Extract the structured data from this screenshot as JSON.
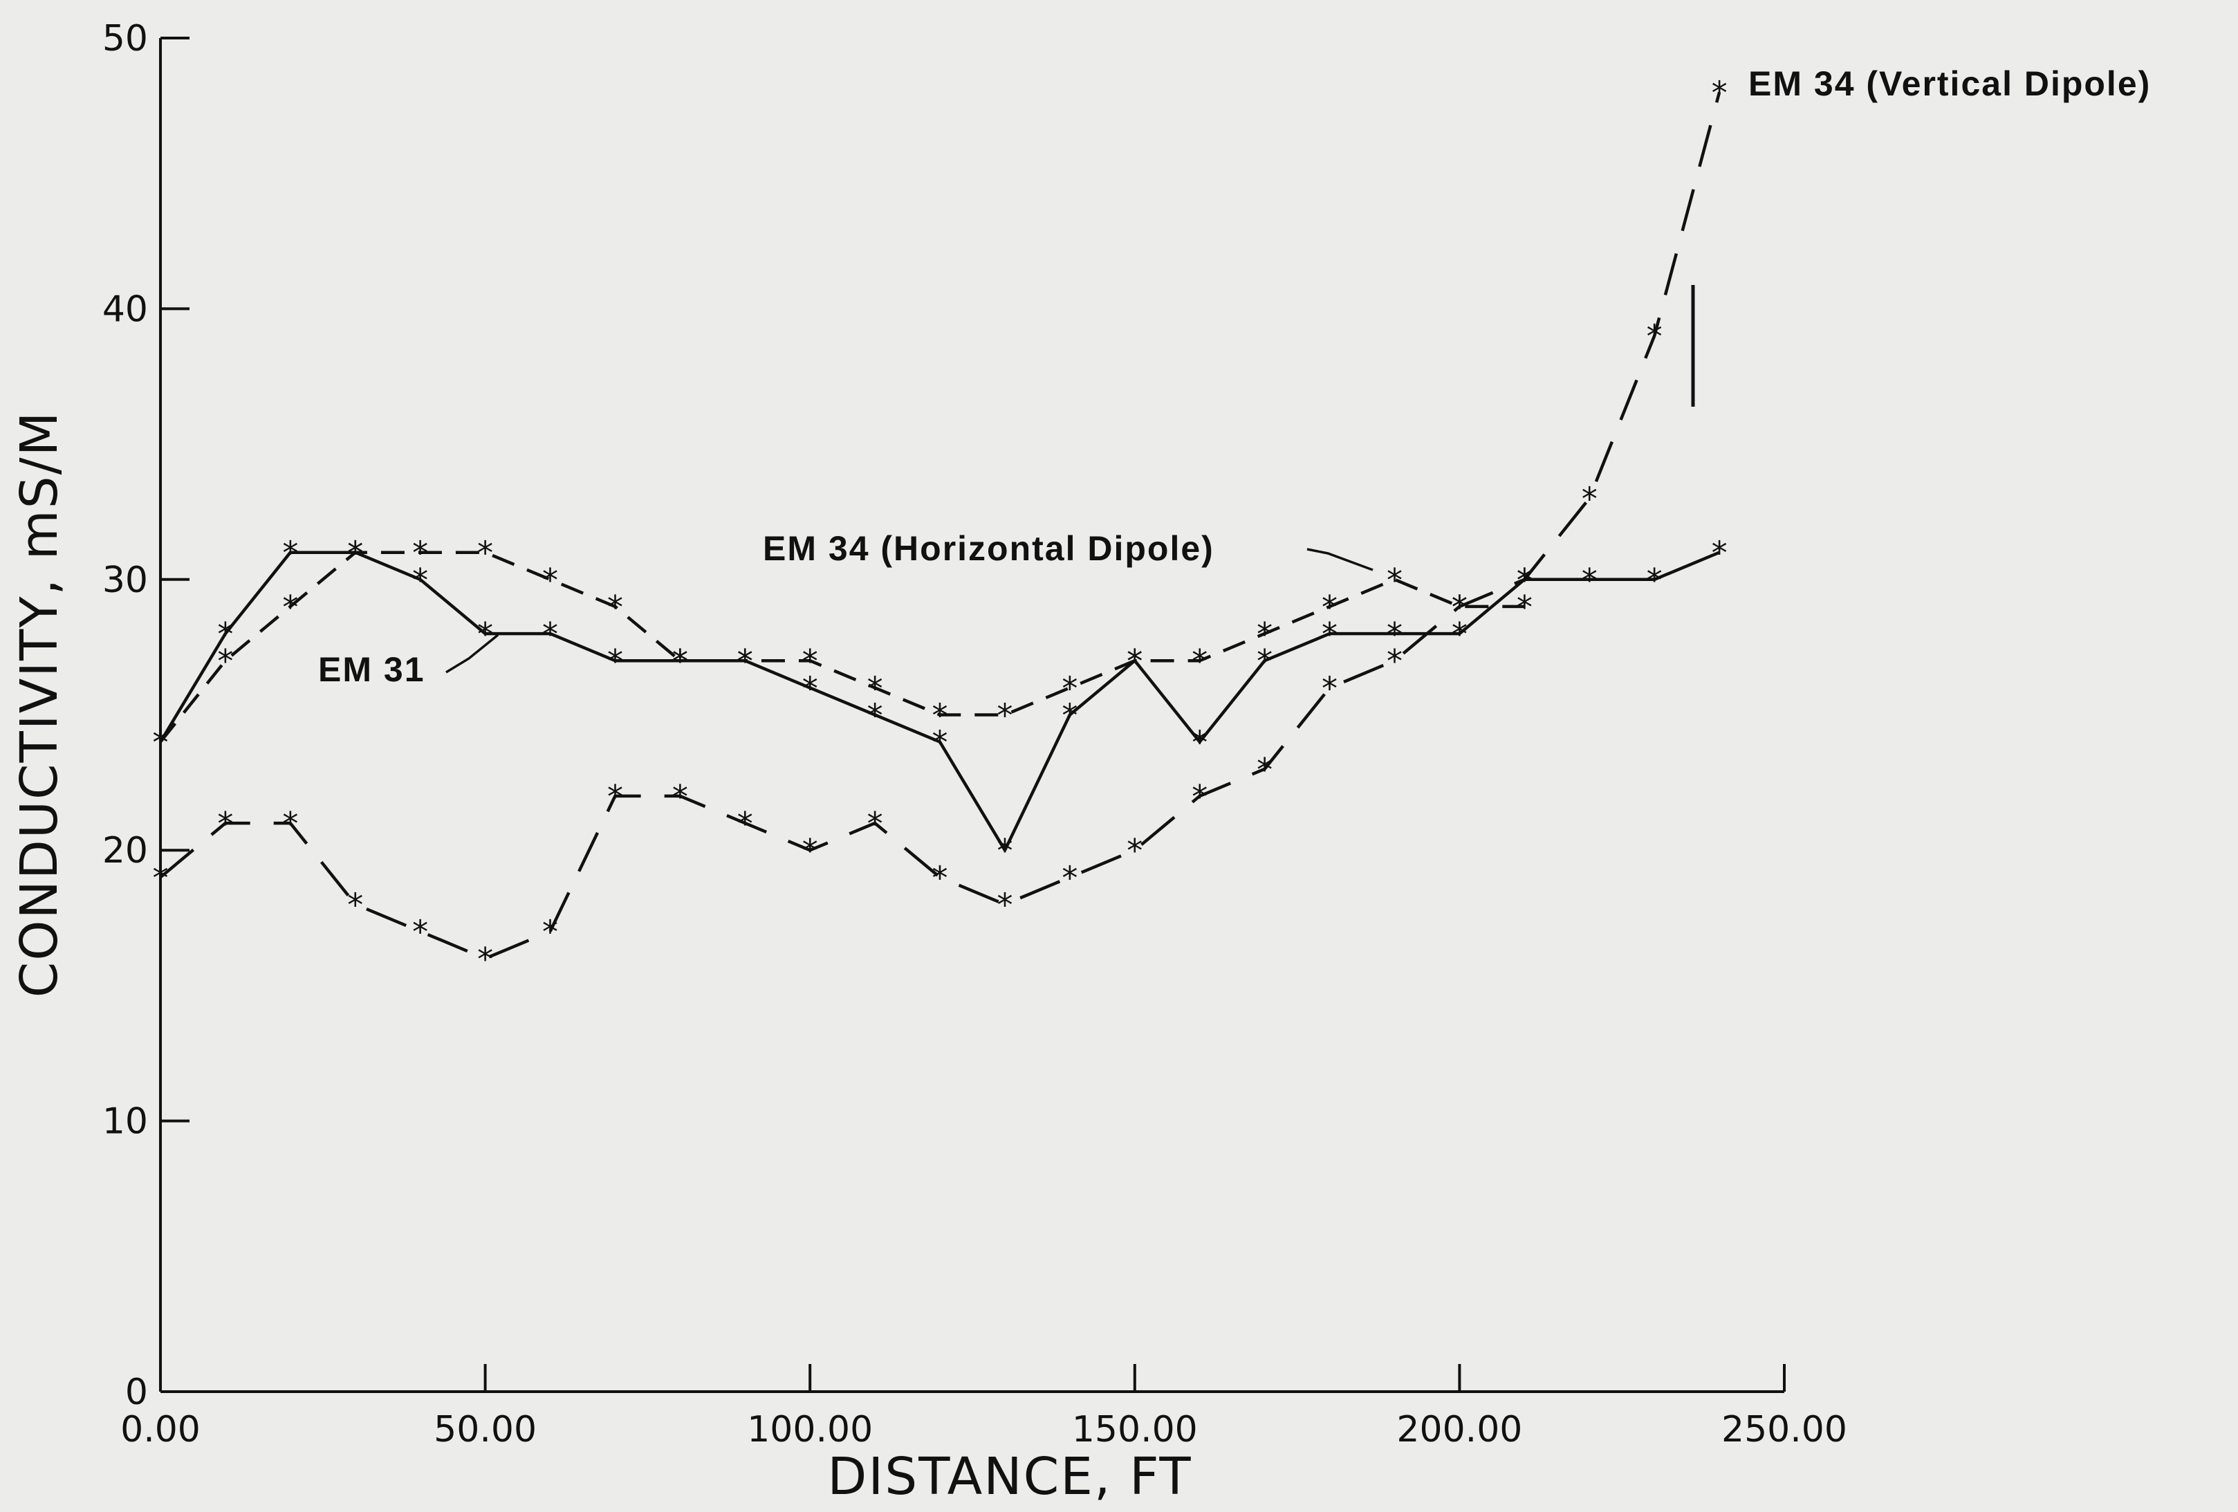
{
  "chart_data": {
    "type": "line",
    "title": "",
    "xlabel": "DISTANCE, FT",
    "ylabel": "CONDUCTIVITY, mS/M",
    "xlim": [
      0,
      250
    ],
    "ylim": [
      0,
      50
    ],
    "x_ticks": [
      "0.00",
      "50.00",
      "100.00",
      "150.00",
      "200.00",
      "250.00"
    ],
    "y_ticks": [
      "0",
      "10",
      "20",
      "30",
      "40",
      "50"
    ],
    "grid": false,
    "series": [
      {
        "name": "EM 31",
        "line_style": "solid",
        "x": [
          0,
          10,
          20,
          30,
          40,
          50,
          60,
          70,
          80,
          90,
          100,
          110,
          120,
          130,
          140,
          150,
          160,
          170,
          180,
          190,
          200,
          210,
          220,
          230,
          240
        ],
        "y": [
          24,
          28,
          31,
          31,
          30,
          28,
          28,
          27,
          27,
          27,
          26,
          25,
          24,
          20,
          25,
          27,
          24,
          27,
          28,
          28,
          28,
          30,
          30,
          30,
          31
        ]
      },
      {
        "name": "EM 34 (Horizontal Dipole)",
        "line_style": "dashed",
        "x": [
          0,
          10,
          20,
          30,
          40,
          50,
          60,
          70,
          80,
          90,
          100,
          110,
          120,
          130,
          140,
          150,
          160,
          170,
          180,
          190,
          200,
          210
        ],
        "y": [
          24,
          27,
          29,
          31,
          31,
          31,
          30,
          29,
          27,
          27,
          27,
          26,
          25,
          25,
          26,
          27,
          27,
          28,
          29,
          30,
          29,
          29
        ]
      },
      {
        "name": "EM 34 (Vertical Dipole)",
        "line_style": "long-dash",
        "x": [
          0,
          10,
          20,
          30,
          40,
          50,
          60,
          70,
          80,
          90,
          100,
          110,
          120,
          130,
          140,
          150,
          160,
          170,
          180,
          190,
          200,
          210,
          220,
          230,
          240
        ],
        "y": [
          19,
          21,
          21,
          18,
          17,
          16,
          17,
          22,
          22,
          21,
          20,
          21,
          19,
          18,
          19,
          20,
          22,
          23,
          26,
          27,
          29,
          30,
          33,
          39,
          48
        ]
      }
    ],
    "colors": {
      "background": "#ececeb",
      "ink": "#111111"
    }
  }
}
